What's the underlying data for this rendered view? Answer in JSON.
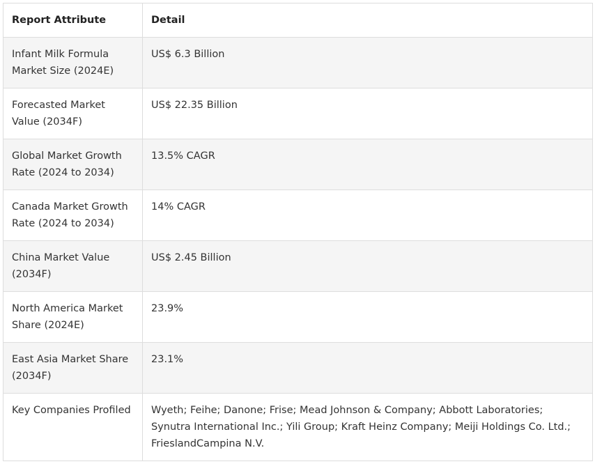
{
  "table": {
    "headers": [
      "Report Attribute",
      "Detail"
    ],
    "rows": [
      {
        "attribute": "Infant Milk Formula Market Size (2024E)",
        "detail": "US$ 6.3 Billion"
      },
      {
        "attribute": "Forecasted Market Value (2034F)",
        "detail": "US$ 22.35 Billion"
      },
      {
        "attribute": "Global Market Growth Rate (2024 to 2034)",
        "detail": "13.5% CAGR"
      },
      {
        "attribute": "Canada Market Growth Rate (2024 to 2034)",
        "detail": "14% CAGR"
      },
      {
        "attribute": "China Market Value (2034F)",
        "detail": "US$ 2.45 Billion"
      },
      {
        "attribute": "North America Market Share (2024E)",
        "detail": "23.9%"
      },
      {
        "attribute": "East Asia Market Share (2034F)",
        "detail": "23.1%"
      },
      {
        "attribute": "Key Companies Profiled",
        "detail": "Wyeth; Feihe; Danone; Frise; Mead Johnson & Company; Abbott Laboratories; Synutra International Inc.; Yili Group; Kraft Heinz Company; Meiji Holdings Co. Ltd.; FrieslandCampina N.V."
      }
    ]
  }
}
